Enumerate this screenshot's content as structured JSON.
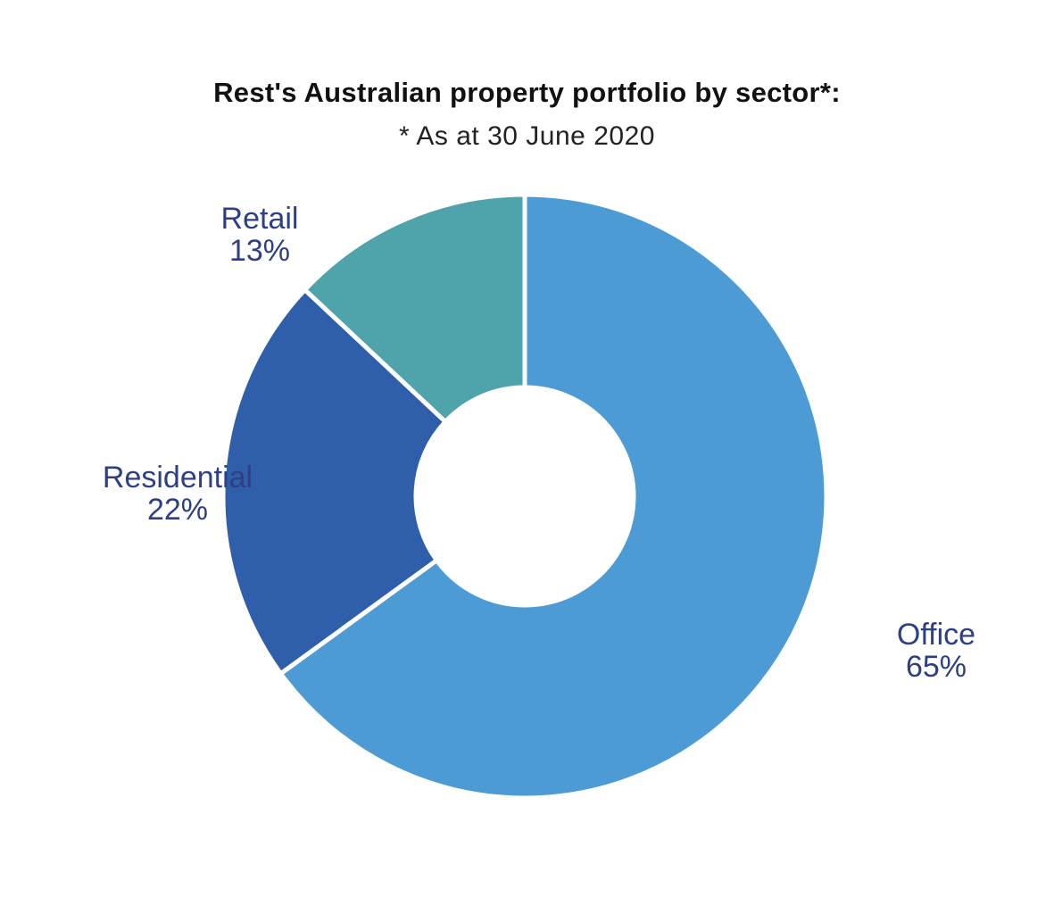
{
  "chart_data": {
    "type": "pie",
    "style": "donut",
    "title": "Rest's Australian property portfolio by sector*:",
    "subtitle": "* As at 30 June 2020",
    "slices": [
      {
        "label": "Office",
        "value": 65,
        "value_label": "65%",
        "color": "#4d9bd5"
      },
      {
        "label": "Residential",
        "value": 22,
        "value_label": "22%",
        "color": "#2f5fab"
      },
      {
        "label": "Retail",
        "value": 13,
        "value_label": "13%",
        "color": "#4fa3ab"
      }
    ],
    "label_color": "#2e3f86",
    "legend": "none"
  }
}
